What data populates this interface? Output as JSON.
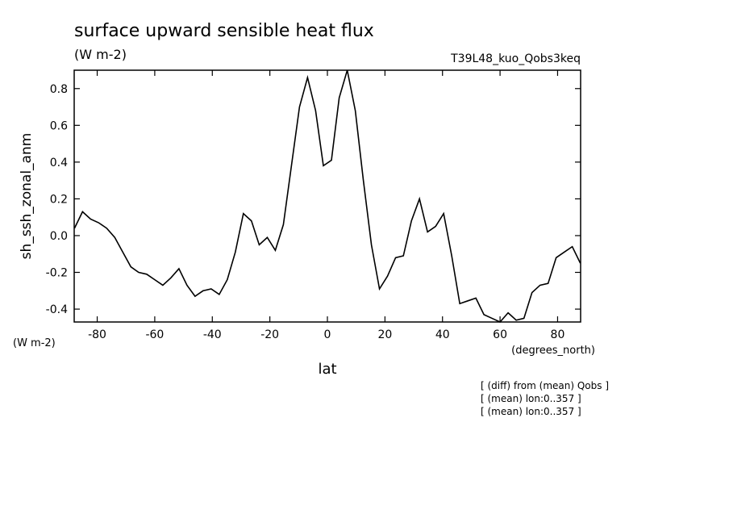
{
  "chart_data": {
    "type": "line",
    "title": "surface upward sensible heat flux",
    "subtitle": "(W m-2)",
    "dataset_label": "T39L48_kuo_Qobs3keq",
    "y_label": "sh_ssh_zonal_anm",
    "y_units": "(W m-2)",
    "x_label": "lat",
    "x_units": "(degrees_north)",
    "notes": [
      "[ (diff) from (mean) Qobs ]",
      "[ (mean) lon:0..357 ]",
      "[ (mean) lon:0..357 ]"
    ],
    "x": [
      -87.9,
      -85.1,
      -82.3,
      -79.5,
      -76.7,
      -73.9,
      -71.1,
      -68.3,
      -65.6,
      -62.8,
      -60.0,
      -57.2,
      -54.4,
      -51.6,
      -48.8,
      -46.0,
      -43.2,
      -40.4,
      -37.6,
      -34.8,
      -32.0,
      -29.2,
      -26.4,
      -23.7,
      -20.9,
      -18.1,
      -15.3,
      -12.5,
      -9.7,
      -6.9,
      -4.1,
      -1.4,
      1.4,
      4.1,
      6.9,
      9.7,
      12.5,
      15.3,
      18.1,
      20.9,
      23.7,
      26.4,
      29.2,
      32.0,
      34.8,
      37.6,
      40.4,
      43.2,
      46.0,
      48.8,
      51.6,
      54.4,
      57.2,
      60.0,
      62.8,
      65.6,
      68.3,
      71.1,
      73.9,
      76.7,
      79.5,
      82.3,
      85.1,
      87.9
    ],
    "series": [
      {
        "color": "#000000",
        "values": [
          0.04,
          0.13,
          0.09,
          0.07,
          0.04,
          -0.01,
          -0.09,
          -0.17,
          -0.2,
          -0.21,
          -0.24,
          -0.27,
          -0.23,
          -0.18,
          -0.27,
          -0.33,
          -0.3,
          -0.29,
          -0.32,
          -0.24,
          -0.09,
          0.12,
          0.08,
          -0.05,
          -0.01,
          -0.08,
          0.06,
          0.38,
          0.7,
          0.86,
          0.68,
          0.38,
          0.41,
          0.75,
          0.9,
          0.68,
          0.3,
          -0.05,
          -0.29,
          -0.22,
          -0.12,
          -0.11,
          0.08,
          0.2,
          0.02,
          0.05,
          0.12,
          -0.11,
          -0.37,
          -0.355,
          -0.34,
          -0.43,
          -0.45,
          -0.47,
          -0.42,
          -0.46,
          -0.45,
          -0.31,
          -0.27,
          -0.26,
          -0.12,
          -0.09,
          -0.06,
          -0.15
        ]
      }
    ],
    "xlim": [
      -88,
      88
    ],
    "ylim": [
      -0.47,
      0.9
    ],
    "xticks": [
      -80,
      -60,
      -40,
      -20,
      0,
      20,
      40,
      60,
      80
    ],
    "yticks": [
      -0.4,
      -0.2,
      {
        "value": 0,
        "label": "0.0"
      },
      0.2,
      0.4,
      0.6,
      0.8
    ]
  }
}
